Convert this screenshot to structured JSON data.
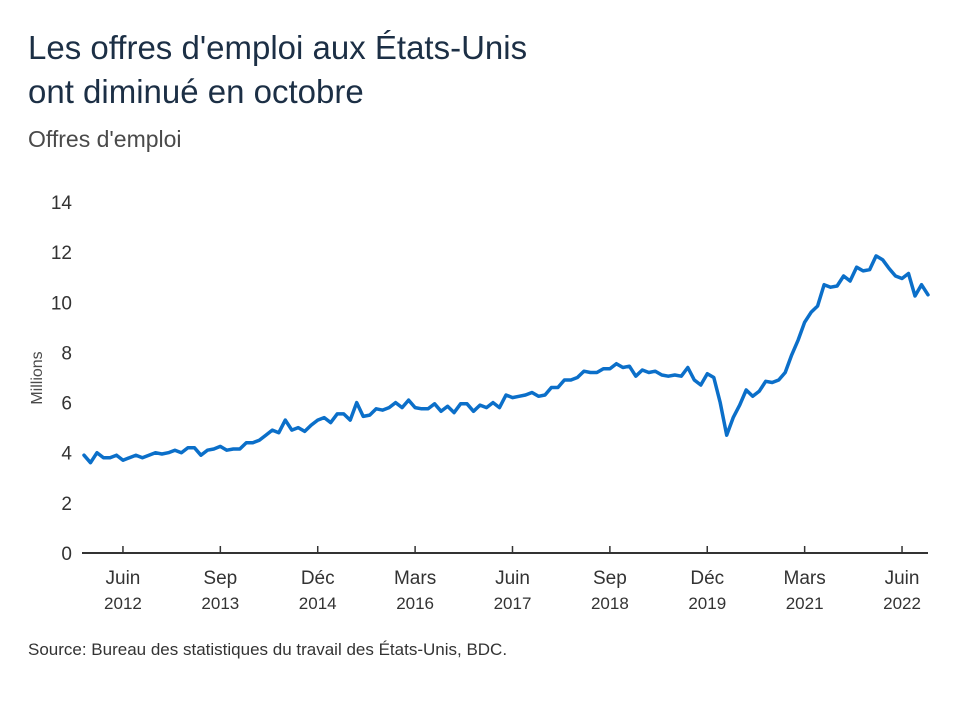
{
  "title_lines": [
    "Les offres d'emploi aux États-Unis",
    "ont diminué en octobre"
  ],
  "subtitle": "Offres d'emploi",
  "source": "Source: Bureau des statistiques du travail des États-Unis, BDC.",
  "colors": {
    "line": "#0b6fc9",
    "axis": "#333333",
    "text": "#1c2f45"
  },
  "chart_data": {
    "type": "line",
    "ylabel": "Millions",
    "ylim": [
      0,
      14
    ],
    "yticks": [
      0,
      2,
      4,
      6,
      8,
      10,
      12,
      14
    ],
    "grid": false,
    "x_range": [
      "2011-12",
      "2022-10"
    ],
    "x_ticks": [
      {
        "date": "2012-06",
        "month": "Juin",
        "year": "2012"
      },
      {
        "date": "2013-09",
        "month": "Sep",
        "year": "2013"
      },
      {
        "date": "2014-12",
        "month": "Déc",
        "year": "2014"
      },
      {
        "date": "2016-03",
        "month": "Mars",
        "year": "2016"
      },
      {
        "date": "2017-06",
        "month": "Juin",
        "year": "2017"
      },
      {
        "date": "2018-09",
        "month": "Sep",
        "year": "2018"
      },
      {
        "date": "2019-12",
        "month": "Déc",
        "year": "2019"
      },
      {
        "date": "2021-03",
        "month": "Mars",
        "year": "2021"
      },
      {
        "date": "2022-06",
        "month": "Juin",
        "year": "2022"
      }
    ],
    "series": [
      {
        "start": "2011-12",
        "frequency": "monthly",
        "values": [
          3.9,
          3.6,
          4.0,
          3.8,
          3.8,
          3.9,
          3.7,
          3.8,
          3.9,
          3.8,
          3.9,
          4.0,
          3.95,
          4.0,
          4.1,
          4.0,
          4.2,
          4.2,
          3.9,
          4.1,
          4.15,
          4.25,
          4.1,
          4.15,
          4.15,
          4.4,
          4.4,
          4.5,
          4.7,
          4.9,
          4.8,
          5.3,
          4.9,
          5.0,
          4.85,
          5.1,
          5.3,
          5.4,
          5.2,
          5.55,
          5.55,
          5.3,
          6.0,
          5.45,
          5.5,
          5.75,
          5.7,
          5.8,
          6.0,
          5.8,
          6.1,
          5.8,
          5.75,
          5.75,
          5.95,
          5.65,
          5.85,
          5.6,
          5.95,
          5.95,
          5.65,
          5.9,
          5.8,
          6.0,
          5.8,
          6.3,
          6.2,
          6.25,
          6.3,
          6.4,
          6.25,
          6.3,
          6.6,
          6.6,
          6.9,
          6.9,
          7.0,
          7.25,
          7.2,
          7.2,
          7.35,
          7.35,
          7.55,
          7.4,
          7.45,
          7.05,
          7.3,
          7.2,
          7.25,
          7.1,
          7.05,
          7.1,
          7.05,
          7.4,
          6.9,
          6.7,
          7.15,
          7.0,
          6.0,
          4.7,
          5.4,
          5.9,
          6.5,
          6.25,
          6.45,
          6.85,
          6.8,
          6.9,
          7.2,
          7.9,
          8.5,
          9.2,
          9.6,
          9.85,
          10.7,
          10.6,
          10.65,
          11.05,
          10.85,
          11.4,
          11.25,
          11.3,
          11.85,
          11.7,
          11.35,
          11.05,
          10.95,
          11.15,
          10.25,
          10.7,
          10.3
        ]
      }
    ]
  }
}
